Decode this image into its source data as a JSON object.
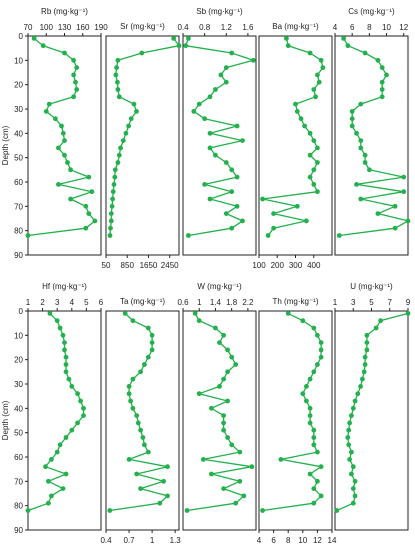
{
  "figure": {
    "depth_label": "Depth (cm)",
    "depth_ticks": [
      0,
      10,
      20,
      30,
      40,
      50,
      60,
      70,
      80,
      90
    ],
    "ylim": [
      0,
      90
    ],
    "line_color": "#22b14c",
    "marker_color": "#22b14c",
    "frame_color": "#222222"
  },
  "chart_data": [
    {
      "type": "line",
      "title": "Rb (mg·kg⁻¹)",
      "xlim": [
        70,
        190
      ],
      "xticks": [
        70,
        100,
        130,
        160,
        190
      ],
      "tick_labels": [
        "70",
        "100",
        "130",
        "160",
        "190"
      ],
      "x_axis": "top",
      "depth": [
        1,
        4,
        7,
        10,
        13,
        16,
        19,
        22,
        25,
        28,
        31,
        34,
        37,
        40,
        43,
        46,
        49,
        52,
        55,
        58,
        61,
        64,
        67,
        70,
        73,
        76,
        79,
        82
      ],
      "values": [
        80,
        95,
        130,
        145,
        150,
        145,
        148,
        150,
        145,
        105,
        100,
        115,
        125,
        128,
        130,
        120,
        130,
        135,
        140,
        170,
        120,
        175,
        140,
        165,
        170,
        180,
        165,
        70
      ]
    },
    {
      "type": "line",
      "title": "Sr (mg·kg⁻¹)",
      "xlim": [
        50,
        2800
      ],
      "xticks": [
        50,
        850,
        1650,
        2450
      ],
      "tick_labels": [
        "50",
        "850",
        "1650",
        "2450"
      ],
      "x_axis": "bottom",
      "depth": [
        1,
        4,
        7,
        10,
        13,
        16,
        19,
        22,
        25,
        28,
        31,
        34,
        37,
        40,
        43,
        46,
        49,
        52,
        55,
        58,
        61,
        64,
        67,
        70,
        73,
        76,
        79,
        82
      ],
      "values": [
        2600,
        2800,
        1400,
        500,
        450,
        420,
        480,
        500,
        550,
        1100,
        1200,
        1000,
        900,
        800,
        700,
        600,
        550,
        500,
        400,
        380,
        350,
        320,
        300,
        280,
        250,
        250,
        220,
        200
      ]
    },
    {
      "type": "line",
      "title": "Sb (mg·kg⁻¹)",
      "xlim": [
        0.4,
        1.75
      ],
      "xticks": [
        0.4,
        0.8,
        1.2,
        1.6
      ],
      "tick_labels": [
        "0.4",
        "0.8",
        "1.2",
        "1.6"
      ],
      "x_axis": "top",
      "depth": [
        1,
        4,
        7,
        10,
        13,
        16,
        19,
        22,
        25,
        28,
        31,
        34,
        37,
        40,
        43,
        46,
        49,
        52,
        55,
        58,
        61,
        64,
        67,
        70,
        73,
        76,
        79,
        82
      ],
      "values": [
        0.5,
        0.45,
        1.3,
        1.7,
        1.2,
        1.1,
        1.2,
        1.0,
        0.9,
        0.7,
        0.6,
        0.8,
        1.4,
        0.9,
        1.5,
        0.9,
        1.0,
        1.2,
        1.3,
        1.4,
        0.8,
        1.3,
        0.9,
        1.4,
        1.2,
        1.5,
        1.3,
        0.5
      ]
    },
    {
      "type": "line",
      "title": "Ba (mg·kg⁻¹)",
      "xlim": [
        100,
        500
      ],
      "xticks": [
        100,
        200,
        300,
        400
      ],
      "tick_labels": [
        "100",
        "200",
        "300",
        "400"
      ],
      "x_axis": "bottom",
      "depth": [
        1,
        4,
        7,
        10,
        13,
        16,
        19,
        22,
        25,
        28,
        31,
        34,
        37,
        40,
        43,
        46,
        49,
        52,
        55,
        58,
        61,
        64,
        67,
        70,
        73,
        76,
        79,
        82
      ],
      "values": [
        250,
        260,
        380,
        440,
        450,
        420,
        430,
        400,
        410,
        300,
        310,
        330,
        350,
        380,
        400,
        420,
        380,
        420,
        400,
        380,
        400,
        420,
        120,
        310,
        180,
        360,
        180,
        150
      ]
    },
    {
      "type": "line",
      "title": "Cs (mg·kg⁻¹)",
      "xlim": [
        4,
        12.5
      ],
      "xticks": [
        4,
        6,
        8,
        10,
        12
      ],
      "tick_labels": [
        "4",
        "6",
        "8",
        "10",
        "12"
      ],
      "x_axis": "top",
      "depth": [
        1,
        4,
        7,
        10,
        13,
        16,
        19,
        22,
        25,
        28,
        31,
        34,
        37,
        40,
        43,
        46,
        49,
        52,
        55,
        58,
        61,
        64,
        67,
        70,
        73,
        76,
        79,
        82
      ],
      "values": [
        5,
        5.5,
        7.5,
        9,
        9.5,
        10,
        9.5,
        9.5,
        9.5,
        7,
        6,
        6,
        6,
        6.5,
        7,
        7,
        7.5,
        7.5,
        8,
        12,
        6.5,
        12,
        7,
        11,
        9,
        12.5,
        11,
        4.5
      ]
    },
    {
      "type": "line",
      "title": "Hf (mg·kg⁻¹)",
      "xlim": [
        1,
        6
      ],
      "xticks": [
        1,
        2,
        3,
        4,
        5,
        6
      ],
      "tick_labels": [
        "1",
        "2",
        "3",
        "4",
        "5",
        "6"
      ],
      "x_axis": "top",
      "depth": [
        1,
        4,
        7,
        10,
        13,
        16,
        19,
        22,
        25,
        28,
        31,
        34,
        37,
        40,
        43,
        46,
        49,
        52,
        55,
        58,
        61,
        64,
        67,
        70,
        73,
        76,
        79,
        82
      ],
      "values": [
        2.5,
        3,
        3.2,
        3.4,
        3.5,
        3.5,
        3.6,
        3.6,
        3.6,
        3.8,
        4.0,
        4.4,
        4.6,
        4.8,
        4.8,
        4.4,
        4.0,
        3.6,
        3.2,
        3.0,
        2.6,
        2.2,
        3.6,
        2.4,
        3.4,
        2.6,
        2.4,
        1.0
      ]
    },
    {
      "type": "line",
      "title": "Ta (mg·kg⁻¹)",
      "xlim": [
        0.4,
        1.35
      ],
      "xticks": [
        0.4,
        0.7,
        1.0,
        1.3
      ],
      "tick_labels": [
        "0.4",
        "0.7",
        "1",
        "1.3"
      ],
      "x_axis": "bottom",
      "depth": [
        1,
        4,
        7,
        10,
        13,
        16,
        19,
        22,
        25,
        28,
        31,
        34,
        37,
        40,
        43,
        46,
        49,
        52,
        55,
        58,
        61,
        64,
        67,
        70,
        73,
        76,
        79,
        82
      ],
      "values": [
        0.65,
        0.75,
        0.95,
        1.0,
        1.0,
        1.0,
        0.95,
        0.9,
        0.85,
        0.75,
        0.7,
        0.7,
        0.72,
        0.75,
        0.8,
        0.82,
        0.85,
        0.88,
        0.9,
        0.95,
        0.7,
        1.2,
        0.8,
        1.15,
        0.85,
        1.2,
        1.1,
        0.45
      ]
    },
    {
      "type": "line",
      "title": "W (mg·kg⁻¹)",
      "xlim": [
        0.6,
        2.4
      ],
      "xticks": [
        0.6,
        1.0,
        1.4,
        1.8,
        2.2
      ],
      "tick_labels": [
        "0.6",
        "1",
        "1.4",
        "1.8",
        "2.2"
      ],
      "x_axis": "top",
      "depth": [
        1,
        4,
        7,
        10,
        13,
        16,
        19,
        22,
        25,
        28,
        31,
        34,
        37,
        40,
        43,
        46,
        49,
        52,
        55,
        58,
        61,
        64,
        67,
        70,
        73,
        76,
        79,
        82
      ],
      "values": [
        0.9,
        1.0,
        1.4,
        1.6,
        1.5,
        1.7,
        1.8,
        1.9,
        1.7,
        1.6,
        1.5,
        1.0,
        1.7,
        1.3,
        1.6,
        1.6,
        1.6,
        1.7,
        1.8,
        2.0,
        1.1,
        2.3,
        1.3,
        2.0,
        1.6,
        2.1,
        1.9,
        0.7
      ]
    },
    {
      "type": "line",
      "title": "Th (mg·kg⁻¹)",
      "xlim": [
        4,
        14
      ],
      "xticks": [
        4,
        6,
        8,
        10,
        12,
        14
      ],
      "tick_labels": [
        "4",
        "6",
        "8",
        "10",
        "12",
        "14"
      ],
      "x_axis": "bottom",
      "depth": [
        1,
        4,
        7,
        10,
        13,
        16,
        19,
        22,
        25,
        28,
        31,
        34,
        37,
        40,
        43,
        46,
        49,
        52,
        55,
        58,
        61,
        64,
        67,
        70,
        73,
        76,
        79,
        82
      ],
      "values": [
        8,
        10,
        11.5,
        12,
        12.5,
        12.5,
        12.5,
        12,
        11.5,
        11,
        10.5,
        10,
        10.5,
        11,
        11,
        11,
        11.5,
        11.5,
        11.5,
        12,
        7,
        12.5,
        11,
        12,
        11.5,
        12.5,
        11.5,
        4.5
      ]
    },
    {
      "type": "line",
      "title": "U (mg·kg⁻¹)",
      "xlim": [
        1,
        9
      ],
      "xticks": [
        1,
        3,
        5,
        7,
        9
      ],
      "tick_labels": [
        "1",
        "3",
        "5",
        "7",
        "9"
      ],
      "x_axis": "top",
      "depth": [
        1,
        4,
        7,
        10,
        13,
        16,
        19,
        22,
        25,
        28,
        31,
        34,
        37,
        40,
        43,
        46,
        49,
        52,
        55,
        58,
        61,
        64,
        67,
        70,
        73,
        76,
        79,
        82
      ],
      "values": [
        9,
        6,
        5.5,
        4.5,
        4.5,
        4.5,
        4.3,
        4.3,
        4.2,
        4.0,
        3.8,
        3.5,
        3.2,
        3.0,
        2.8,
        2.6,
        2.5,
        2.4,
        2.5,
        2.8,
        2.6,
        3.0,
        2.8,
        3.2,
        3.0,
        3.2,
        3.0,
        1.2
      ]
    }
  ]
}
